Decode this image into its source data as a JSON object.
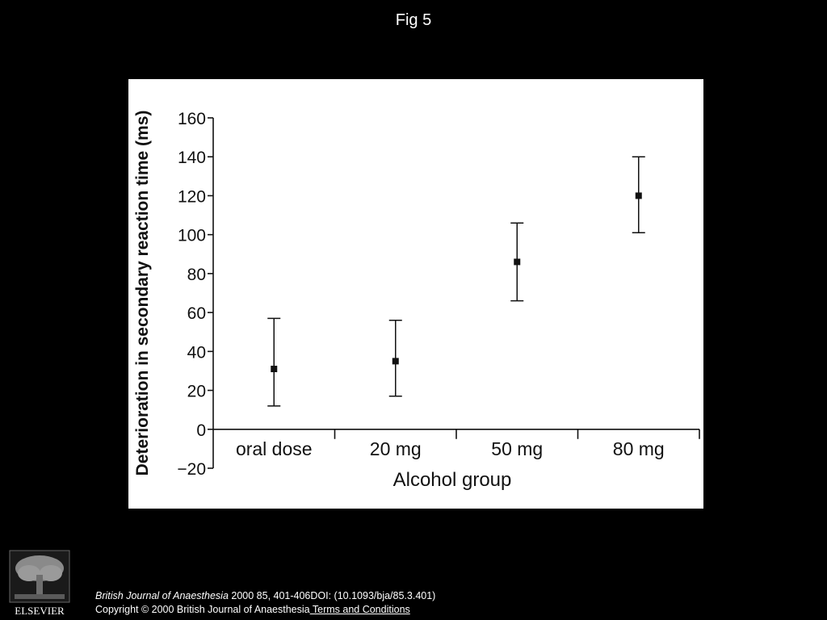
{
  "figure": {
    "label": "Fig 5"
  },
  "chart_data": {
    "type": "scatter",
    "xlabel": "Alcohol group",
    "ylabel": "Deterioration in secondary reaction time (ms)",
    "categories": [
      "oral dose",
      "20 mg",
      "50 mg",
      "80 mg"
    ],
    "series": [
      {
        "values": [
          31,
          35,
          86,
          120
        ],
        "error_low": [
          12,
          17,
          66,
          101
        ],
        "error_high": [
          57,
          56,
          106,
          140
        ]
      }
    ],
    "yticks": [
      160,
      140,
      120,
      100,
      80,
      60,
      40,
      20,
      0,
      -20
    ],
    "ytick_labels": [
      "160",
      "140",
      "120",
      "100",
      "80",
      "60",
      "40",
      "20",
      "0",
      "−20"
    ],
    "ylim": [
      -20,
      160
    ],
    "grid": false
  },
  "footer": {
    "journal": "British Journal of Anaesthesia",
    "citation_rest": " 2000 85, 401-406DOI: (10.1093/bja/85.3.401)",
    "copyright": "Copyright © 2000 British Journal of Anaesthesia",
    "terms_link": " Terms and Conditions",
    "logo_text": "ELSEVIER",
    "logo_icon": "elsevier-tree-icon"
  }
}
